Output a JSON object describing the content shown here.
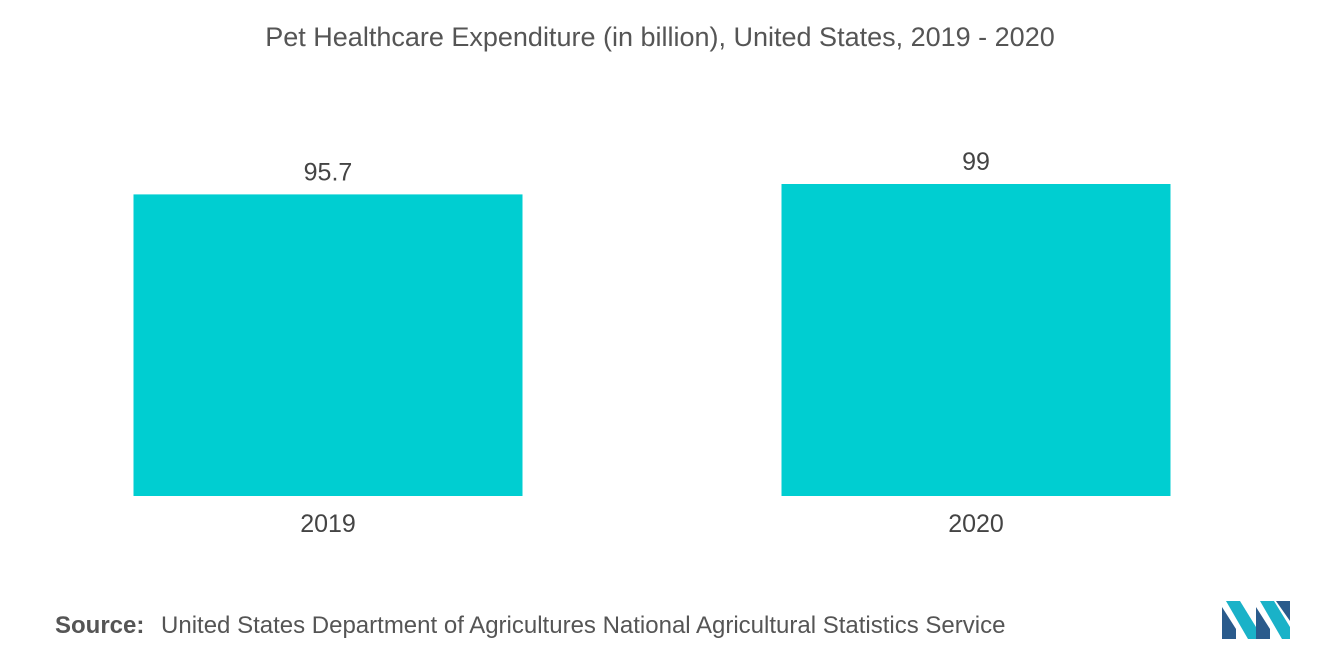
{
  "chart_data": {
    "type": "bar",
    "title": "Pet Healthcare Expenditure (in billion), United States, 2019 - 2020",
    "categories": [
      "2019",
      "2020"
    ],
    "values": [
      95.7,
      99
    ],
    "value_labels": [
      "95.7",
      "99"
    ],
    "xlabel": "",
    "ylabel": "",
    "ylim": [
      0,
      99
    ],
    "grid": false,
    "bar_color": "#00ced1"
  },
  "source": {
    "label": "Source:",
    "text": "United States Department of Agricultures National Agricultural Statistics Service"
  },
  "logo": {
    "icon": "mordor-intelligence-logo-icon",
    "colors": [
      "#2a5b8c",
      "#1ab2c8"
    ]
  }
}
